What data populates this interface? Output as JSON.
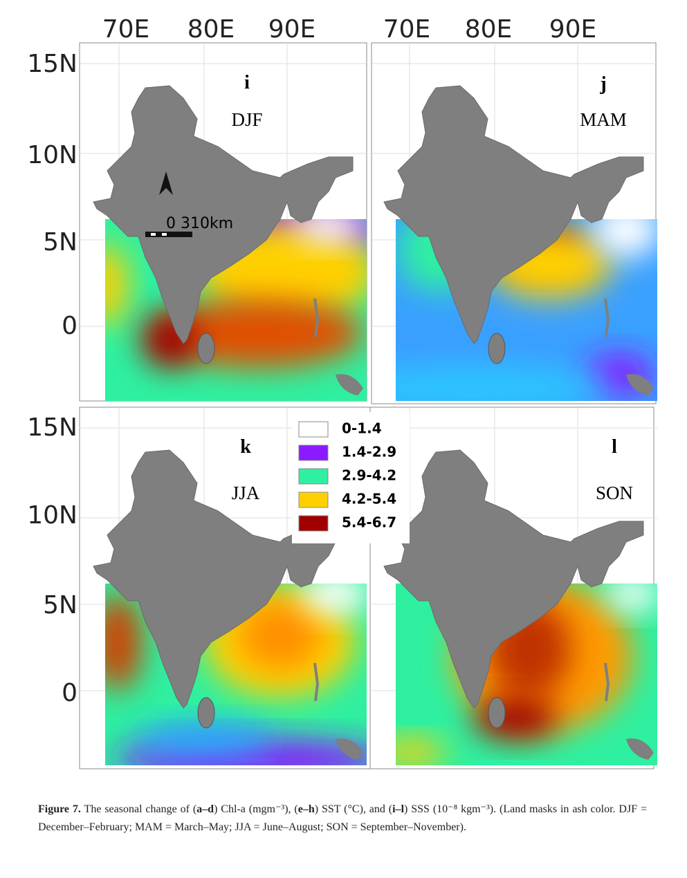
{
  "panels": [
    {
      "letter": "i",
      "season": "DJF"
    },
    {
      "letter": "j",
      "season": "MAM"
    },
    {
      "letter": "k",
      "season": "JJA"
    },
    {
      "letter": "l",
      "season": "SON"
    }
  ],
  "axes": {
    "top_left_lon": [
      "70E",
      "80E",
      "90E"
    ],
    "top_right_lon": [
      "70E",
      "80E",
      "90E"
    ],
    "upper_lat": [
      "15N",
      "10N",
      "5N",
      "0"
    ],
    "lower_lat": [
      "15N",
      "10N",
      "5N",
      "0"
    ]
  },
  "legend": [
    {
      "label": "0-1.4",
      "color": "#ffffff"
    },
    {
      "label": "1.4-2.9",
      "color": "#8a1aff"
    },
    {
      "label": "2.9-4.2",
      "color": "#2ef0a0"
    },
    {
      "label": "4.2-5.4",
      "color": "#ffd000"
    },
    {
      "label": "5.4-6.7",
      "color": "#a00000"
    }
  ],
  "scale_bar": "0 310km",
  "caption": {
    "runs": [
      {
        "text": "Figure 7.",
        "bold": true
      },
      {
        "text": " The seasonal change of (",
        "bold": false
      },
      {
        "text": "a–d",
        "bold": true
      },
      {
        "text": ") Chl-a (mgm⁻³), (",
        "bold": false
      },
      {
        "text": "e–h",
        "bold": true
      },
      {
        "text": ") SST (°C), and (",
        "bold": false
      },
      {
        "text": "i–l",
        "bold": true
      },
      {
        "text": ") SSS (10⁻⁸ kgm⁻³). (Land masks in ash color. DJF = December–February; MAM = March–May; JJA = June–August; SON = September–November).",
        "bold": false
      }
    ]
  }
}
